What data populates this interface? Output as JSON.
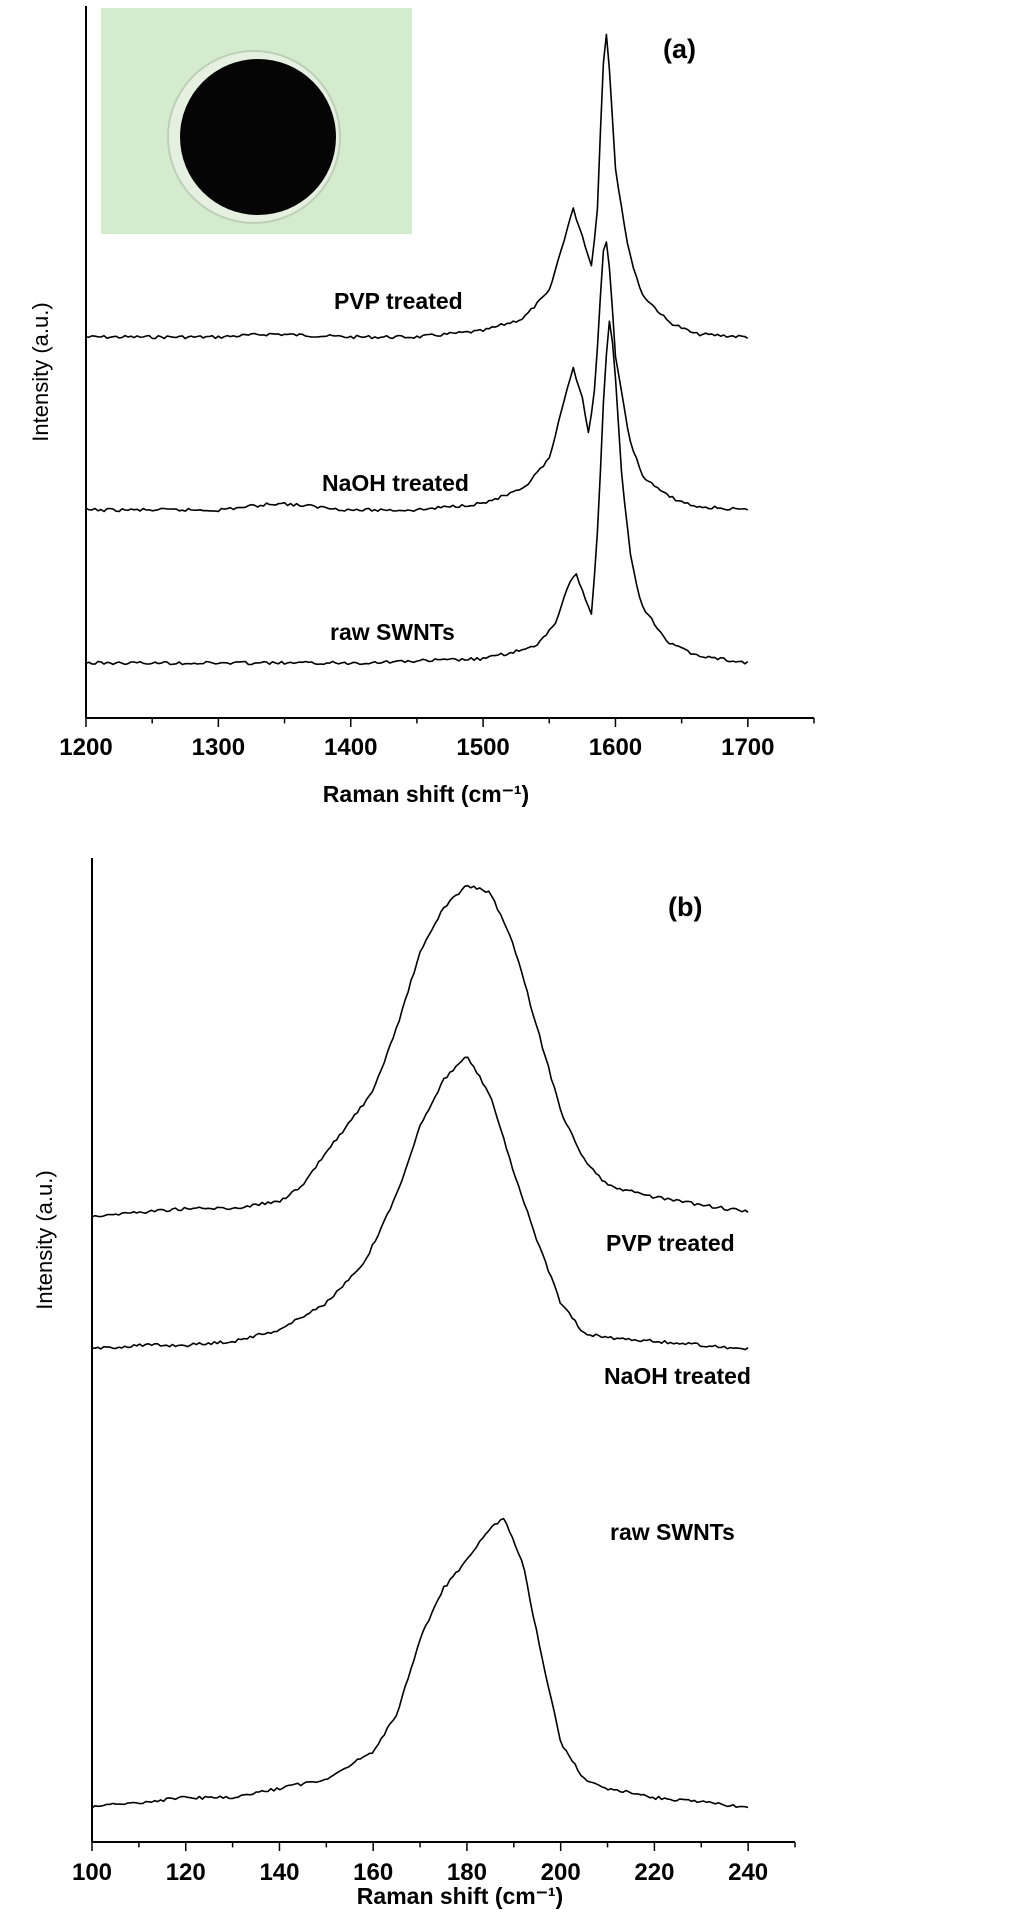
{
  "chart_data": [
    {
      "type": "line",
      "panel_label": "(a)",
      "xlabel": "Raman shift (cm⁻¹)",
      "ylabel": "Intensity (a.u.)",
      "xlim": [
        1200,
        1750
      ],
      "x_ticks": [
        1200,
        1300,
        1400,
        1500,
        1600,
        1700
      ],
      "grid": false,
      "legend": "inline labels",
      "inset": "photo of black circular SWNT film",
      "series": [
        {
          "name": "PVP treated",
          "points": [
            [
              1200,
              0.0
            ],
            [
              1250,
              0.0
            ],
            [
              1300,
              0.0
            ],
            [
              1340,
              0.01
            ],
            [
              1400,
              0.0
            ],
            [
              1450,
              0.0
            ],
            [
              1500,
              0.02
            ],
            [
              1530,
              0.06
            ],
            [
              1550,
              0.15
            ],
            [
              1560,
              0.3
            ],
            [
              1568,
              0.42
            ],
            [
              1575,
              0.33
            ],
            [
              1582,
              0.23
            ],
            [
              1587,
              0.45
            ],
            [
              1590,
              0.85
            ],
            [
              1593,
              1.0
            ],
            [
              1596,
              0.85
            ],
            [
              1600,
              0.55
            ],
            [
              1610,
              0.28
            ],
            [
              1620,
              0.14
            ],
            [
              1640,
              0.05
            ],
            [
              1660,
              0.01
            ],
            [
              1700,
              0.0
            ]
          ]
        },
        {
          "name": "NaOH treated",
          "points": [
            [
              1200,
              0.0
            ],
            [
              1250,
              0.0
            ],
            [
              1300,
              0.0
            ],
            [
              1345,
              0.02
            ],
            [
              1400,
              0.0
            ],
            [
              1450,
              0.0
            ],
            [
              1500,
              0.02
            ],
            [
              1530,
              0.06
            ],
            [
              1550,
              0.15
            ],
            [
              1560,
              0.3
            ],
            [
              1568,
              0.42
            ],
            [
              1575,
              0.33
            ],
            [
              1580,
              0.22
            ],
            [
              1585,
              0.38
            ],
            [
              1590,
              0.72
            ],
            [
              1592,
              0.82
            ],
            [
              1596,
              0.7
            ],
            [
              1600,
              0.45
            ],
            [
              1610,
              0.22
            ],
            [
              1620,
              0.1
            ],
            [
              1640,
              0.04
            ],
            [
              1660,
              0.01
            ],
            [
              1700,
              0.0
            ]
          ]
        },
        {
          "name": "raw SWNTs",
          "points": [
            [
              1200,
              0.0
            ],
            [
              1300,
              0.0
            ],
            [
              1400,
              0.0
            ],
            [
              1500,
              0.01
            ],
            [
              1540,
              0.04
            ],
            [
              1555,
              0.1
            ],
            [
              1565,
              0.2
            ],
            [
              1570,
              0.22
            ],
            [
              1575,
              0.18
            ],
            [
              1582,
              0.12
            ],
            [
              1587,
              0.35
            ],
            [
              1592,
              0.72
            ],
            [
              1596,
              0.86
            ],
            [
              1600,
              0.7
            ],
            [
              1605,
              0.45
            ],
            [
              1612,
              0.25
            ],
            [
              1620,
              0.14
            ],
            [
              1640,
              0.05
            ],
            [
              1660,
              0.02
            ],
            [
              1700,
              0.0
            ]
          ]
        }
      ]
    },
    {
      "type": "line",
      "panel_label": "(b)",
      "xlabel": "Raman shift (cm⁻¹)",
      "ylabel": "Intensity (a.u.)",
      "xlim": [
        100,
        250
      ],
      "x_ticks": [
        100,
        120,
        140,
        160,
        180,
        200,
        220,
        240
      ],
      "grid": false,
      "legend": "inline labels",
      "series": [
        {
          "name": "PVP treated",
          "points": [
            [
              100,
              0.0
            ],
            [
              110,
              0.01
            ],
            [
              120,
              0.02
            ],
            [
              130,
              0.02
            ],
            [
              140,
              0.04
            ],
            [
              145,
              0.08
            ],
            [
              150,
              0.17
            ],
            [
              155,
              0.25
            ],
            [
              160,
              0.33
            ],
            [
              165,
              0.5
            ],
            [
              170,
              0.7
            ],
            [
              175,
              0.82
            ],
            [
              180,
              0.88
            ],
            [
              185,
              0.86
            ],
            [
              190,
              0.72
            ],
            [
              195,
              0.5
            ],
            [
              200,
              0.28
            ],
            [
              205,
              0.15
            ],
            [
              210,
              0.08
            ],
            [
              220,
              0.05
            ],
            [
              230,
              0.03
            ],
            [
              240,
              0.01
            ]
          ]
        },
        {
          "name": "NaOH treated",
          "points": [
            [
              100,
              0.0
            ],
            [
              110,
              0.01
            ],
            [
              120,
              0.01
            ],
            [
              130,
              0.02
            ],
            [
              140,
              0.05
            ],
            [
              150,
              0.12
            ],
            [
              158,
              0.22
            ],
            [
              165,
              0.4
            ],
            [
              170,
              0.58
            ],
            [
              175,
              0.7
            ],
            [
              180,
              0.76
            ],
            [
              185,
              0.66
            ],
            [
              190,
              0.46
            ],
            [
              195,
              0.28
            ],
            [
              200,
              0.12
            ],
            [
              205,
              0.04
            ],
            [
              210,
              0.03
            ],
            [
              220,
              0.02
            ],
            [
              230,
              0.01
            ],
            [
              240,
              0.0
            ]
          ]
        },
        {
          "name": "raw SWNTs",
          "points": [
            [
              100,
              0.0
            ],
            [
              110,
              0.01
            ],
            [
              120,
              0.02
            ],
            [
              130,
              0.02
            ],
            [
              140,
              0.04
            ],
            [
              150,
              0.06
            ],
            [
              160,
              0.12
            ],
            [
              165,
              0.2
            ],
            [
              170,
              0.36
            ],
            [
              175,
              0.47
            ],
            [
              180,
              0.53
            ],
            [
              185,
              0.6
            ],
            [
              188,
              0.62
            ],
            [
              192,
              0.52
            ],
            [
              196,
              0.32
            ],
            [
              200,
              0.14
            ],
            [
              205,
              0.06
            ],
            [
              210,
              0.04
            ],
            [
              220,
              0.02
            ],
            [
              230,
              0.01
            ],
            [
              240,
              0.0
            ]
          ]
        }
      ]
    }
  ]
}
